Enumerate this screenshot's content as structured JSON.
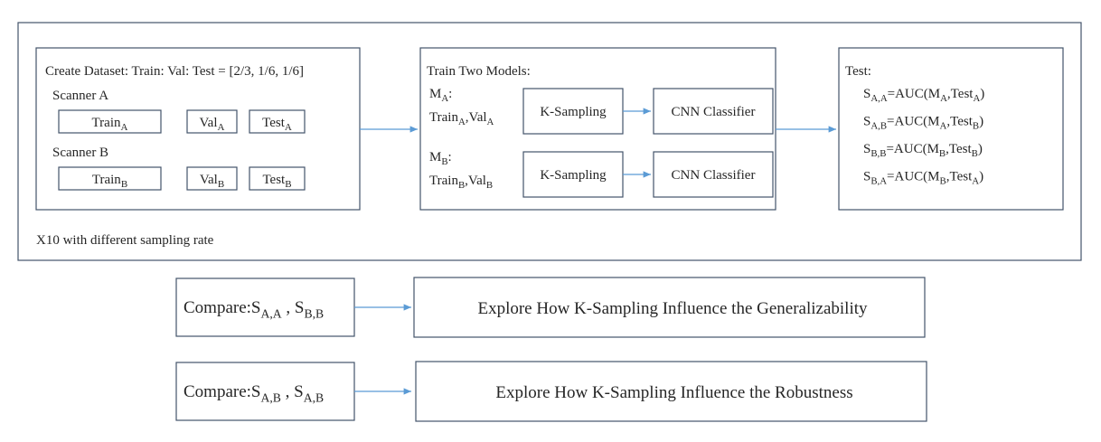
{
  "experiment": {
    "dataset": {
      "title": "Create Dataset: Train: Val: Test = [2/3, 1/6, 1/6]",
      "scanners": [
        {
          "label": "Scanner A",
          "splits": [
            {
              "text": "Train",
              "sub": "A"
            },
            {
              "text": "Val",
              "sub": "A"
            },
            {
              "text": "Test",
              "sub": "A"
            }
          ]
        },
        {
          "label": "Scanner B",
          "splits": [
            {
              "text": "Train",
              "sub": "B"
            },
            {
              "text": "Val",
              "sub": "B"
            },
            {
              "text": "Test",
              "sub": "B"
            }
          ]
        }
      ]
    },
    "models": {
      "title": "Train Two Models:",
      "rows": [
        {
          "model": [
            {
              "text": "M",
              "sub": "A"
            },
            {
              "text": ":"
            }
          ],
          "data": [
            {
              "text": "Train",
              "sub": "A"
            },
            {
              "text": ",Val",
              "sub": "A"
            }
          ],
          "steps": [
            "K-Sampling",
            "CNN Classifier"
          ]
        },
        {
          "model": [
            {
              "text": "M",
              "sub": "B"
            },
            {
              "text": ":"
            }
          ],
          "data": [
            {
              "text": "Train",
              "sub": "B"
            },
            {
              "text": ",Val",
              "sub": "B"
            }
          ],
          "steps": [
            "K-Sampling",
            "CNN Classifier"
          ]
        }
      ]
    },
    "test": {
      "title": "Test:",
      "rows": [
        [
          {
            "text": "S",
            "sub": "A,A"
          },
          {
            "text": "=AUC(M",
            "sub": "A"
          },
          {
            "text": ",Test",
            "sub": "A"
          },
          {
            "text": ")"
          }
        ],
        [
          {
            "text": "S",
            "sub": "A,B"
          },
          {
            "text": "=AUC(M",
            "sub": "A"
          },
          {
            "text": ",Test",
            "sub": "B"
          },
          {
            "text": ")"
          }
        ],
        [
          {
            "text": "S",
            "sub": "B,B"
          },
          {
            "text": "=AUC(M",
            "sub": "B"
          },
          {
            "text": ",Test",
            "sub": "B"
          },
          {
            "text": ")"
          }
        ],
        [
          {
            "text": "S",
            "sub": "B,A"
          },
          {
            "text": "=AUC(M",
            "sub": "B"
          },
          {
            "text": ",Test",
            "sub": "A"
          },
          {
            "text": ")"
          }
        ]
      ]
    },
    "note": "X10 with different sampling rate"
  },
  "comparisons": [
    {
      "compare": [
        {
          "text": "Compare:S",
          "sub": "A,A"
        },
        {
          "text": " , S",
          "sub": "B,B"
        }
      ],
      "goal": "Explore How K-Sampling Influence the Generalizability"
    },
    {
      "compare": [
        {
          "text": "Compare:S",
          "sub": "A,B"
        },
        {
          "text": " , S",
          "sub": "A,B"
        }
      ],
      "goal": "Explore How K-Sampling Influence the Robustness"
    }
  ]
}
